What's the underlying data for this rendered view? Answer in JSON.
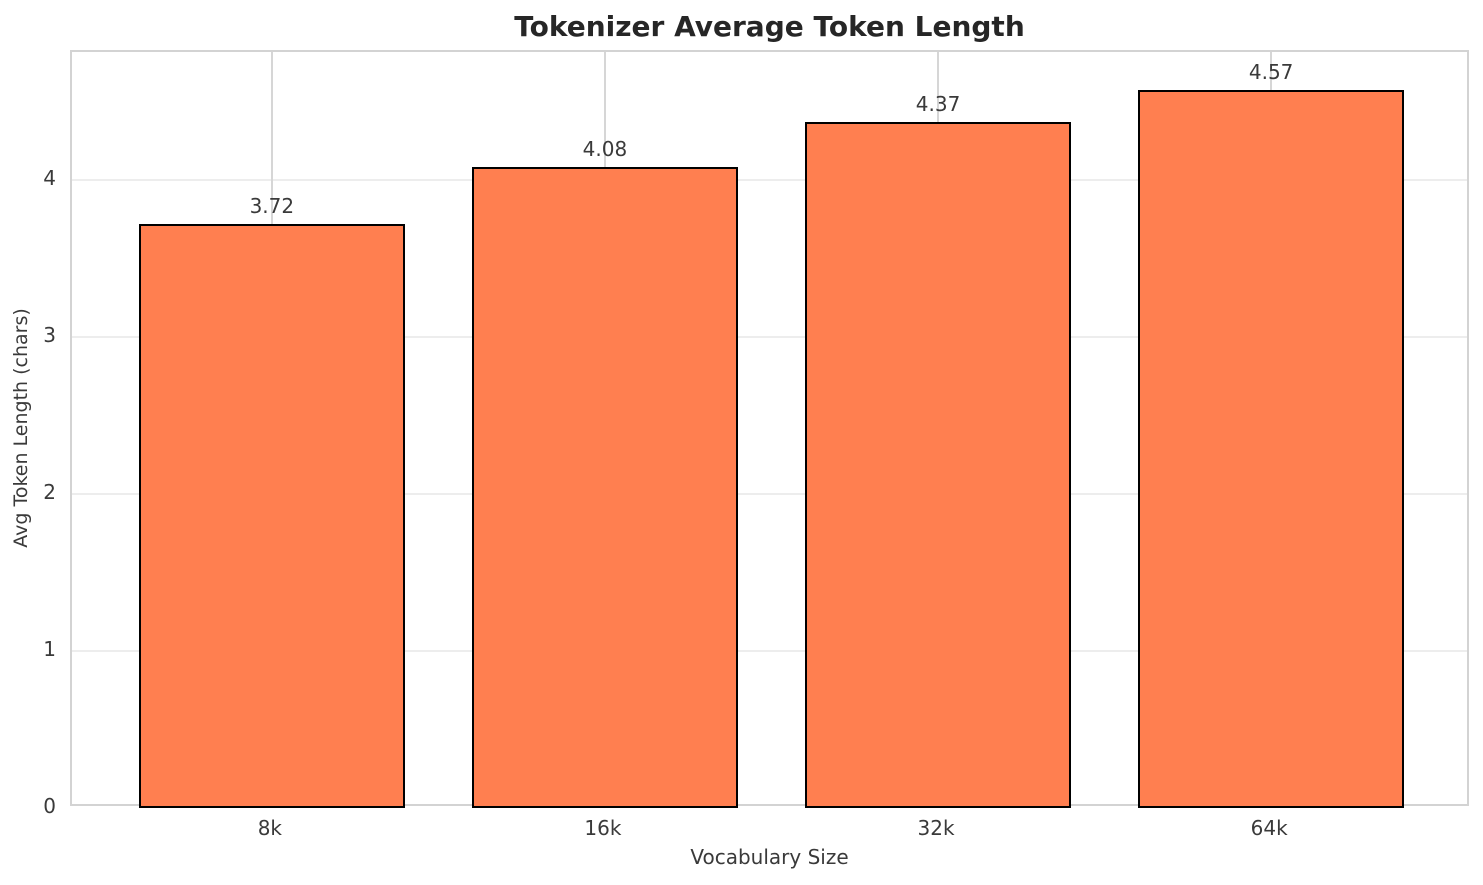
{
  "chart_data": {
    "type": "bar",
    "title": "Tokenizer Average Token Length",
    "xlabel": "Vocabulary Size",
    "ylabel": "Avg Token Length (chars)",
    "categories": [
      "8k",
      "16k",
      "32k",
      "64k"
    ],
    "values": [
      3.72,
      4.08,
      4.37,
      4.57
    ],
    "value_labels": [
      "3.72",
      "4.08",
      "4.37",
      "4.57"
    ],
    "yticks": [
      0,
      1,
      2,
      3,
      4
    ],
    "ytick_labels": [
      "0",
      "1",
      "2",
      "3",
      "4"
    ],
    "ylim": [
      0,
      4.815
    ],
    "xlim": [
      -0.6,
      3.6
    ],
    "bar_width": 0.8,
    "grid": true,
    "legend": "none",
    "colors": {
      "bar_fill": "#ff7f50",
      "bar_edge": "#000000",
      "grid_x": "#d6d6d6",
      "grid_y": "#ededed",
      "spine": "#d3d3d3",
      "text": "#3a3a3a",
      "title_text": "#262626",
      "background": "#ffffff"
    }
  }
}
